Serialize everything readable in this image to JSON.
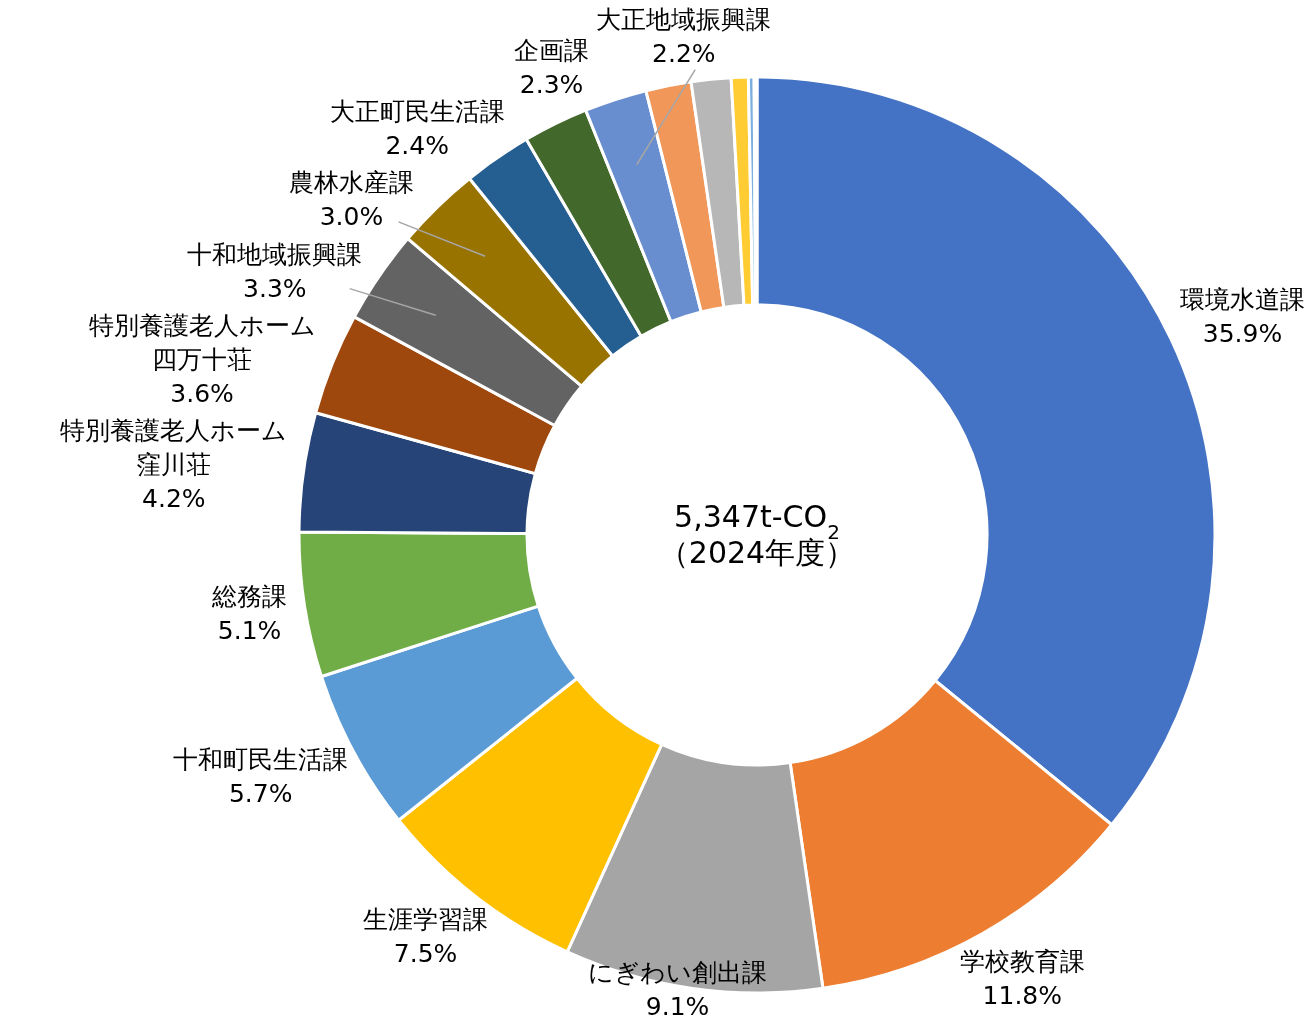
{
  "chart_data": {
    "type": "donut",
    "categories": [
      "環境水道課",
      "学校教育課",
      "にぎわい創出課",
      "生涯学習課",
      "十和町民生活課",
      "総務課",
      "特別養護老人ホーム窪川荘",
      "特別養護老人ホーム四万十荘",
      "十和地域振興課",
      "農林水産課",
      "大正町民生活課",
      "企画課",
      "大正地域振興課",
      null,
      null,
      null,
      null,
      null
    ],
    "values": [
      35.9,
      11.8,
      9.1,
      7.5,
      5.7,
      5.1,
      4.2,
      3.6,
      3.3,
      3.0,
      2.4,
      2.3,
      2.2,
      1.6,
      1.4,
      0.6,
      0.2,
      0.1
    ],
    "value_labels": [
      "35.9%",
      "11.8%",
      "9.1%",
      "7.5%",
      "5.7%",
      "5.1%",
      "4.2%",
      "3.6%",
      "3.3%",
      "3.0%",
      "2.4%",
      "2.3%",
      "2.2%",
      null,
      null,
      null,
      null,
      null
    ],
    "colors": [
      "#4472c4",
      "#ed7d31",
      "#a5a5a5",
      "#ffc000",
      "#5b9bd5",
      "#70ad47",
      "#264478",
      "#9e480e",
      "#636363",
      "#997300",
      "#255e91",
      "#43682b",
      "#698ed0",
      "#f1975a",
      "#b7b7b7",
      "#ffcd33",
      "#7cafdd",
      "#8cc168"
    ],
    "annotations": [
      "5,347t-CO$_{2}$",
      "（2024年度）"
    ]
  }
}
